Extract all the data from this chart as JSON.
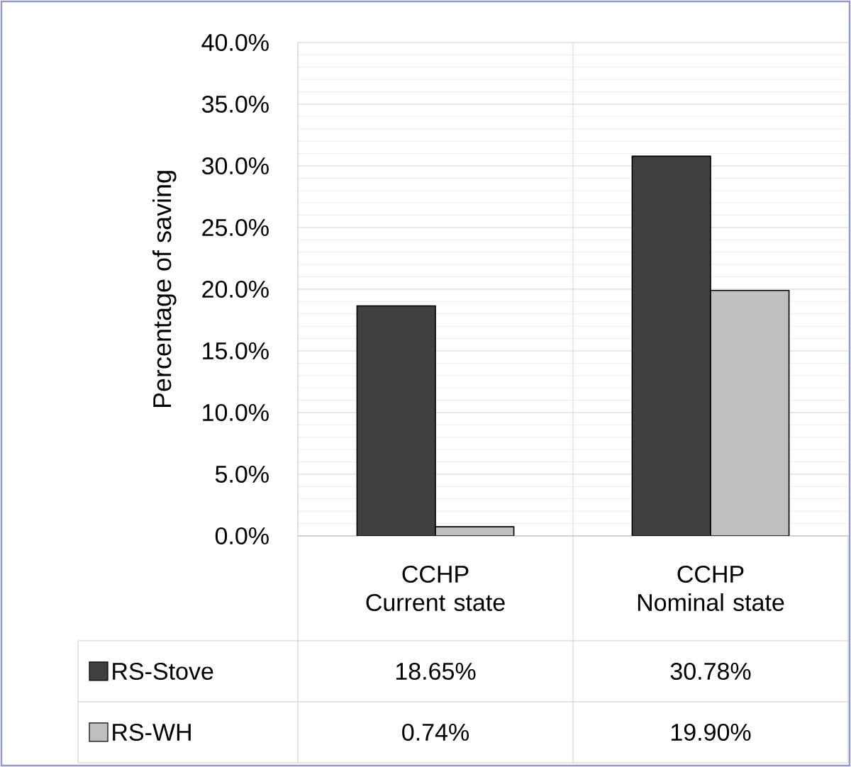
{
  "chart_data": {
    "type": "bar",
    "ylabel": "Percentage of saving",
    "categories": [
      "CCHP Current state",
      "CCHP Nominal state"
    ],
    "series": [
      {
        "name": "RS-Stove",
        "color": "#404040",
        "values": [
          18.65,
          30.78
        ],
        "value_labels": [
          "18.65%",
          "30.78%"
        ]
      },
      {
        "name": "RS-WH",
        "color": "#bfbfbf",
        "values": [
          0.74,
          19.9
        ],
        "value_labels": [
          "0.74%",
          "19.90%"
        ]
      }
    ],
    "ylim": [
      0,
      40
    ],
    "yticks": [
      {
        "value": 0,
        "label": "0.0%"
      },
      {
        "value": 5,
        "label": "5.0%"
      },
      {
        "value": 10,
        "label": "10.0%"
      },
      {
        "value": 15,
        "label": "15.0%"
      },
      {
        "value": 20,
        "label": "20.0%"
      },
      {
        "value": 25,
        "label": "25.0%"
      },
      {
        "value": 30,
        "label": "30.0%"
      },
      {
        "value": 35,
        "label": "35.0%"
      },
      {
        "value": 40,
        "label": "40.0%"
      }
    ],
    "grid": true,
    "legend": "bottom"
  }
}
